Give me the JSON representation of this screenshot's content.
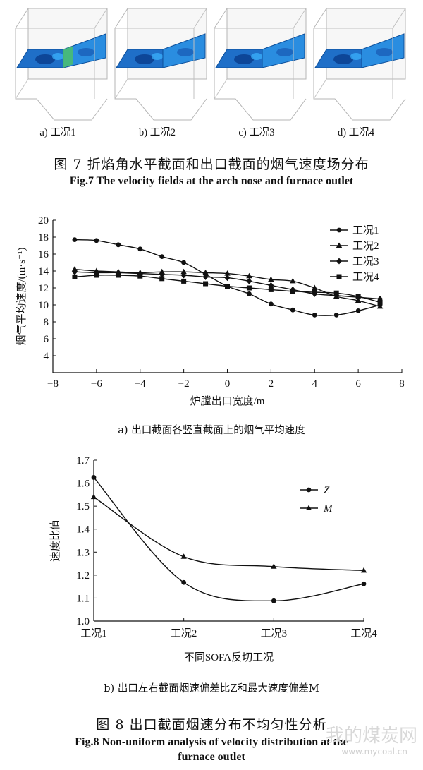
{
  "figure7": {
    "panels": [
      {
        "label": "a) 工况1"
      },
      {
        "label": "b) 工况2"
      },
      {
        "label": "c) 工况3"
      },
      {
        "label": "d) 工况4"
      }
    ],
    "caption_cn": "图 7  折焰角水平截面和出口截面的烟气速度场分布",
    "caption_en": "Fig.7 The velocity fields at the arch nose and furnace outlet"
  },
  "figure8": {
    "caption_cn": "图 8  出口截面烟速分布不均匀性分析",
    "caption_en_line1": "Fig.8 Non-uniform analysis of velocity distribution at the",
    "caption_en_line2": "furnace outlet"
  },
  "chart_data": [
    {
      "type": "line",
      "subtitle": "a) 出口截面各竖直截面上的烟气平均速度",
      "xlabel": "炉膛出口宽度/m",
      "ylabel": "烟气平均速度/(m·s⁻¹)",
      "xlim": [
        -8,
        8
      ],
      "ylim": [
        2,
        20
      ],
      "xticks": [
        -8,
        -6,
        -4,
        -2,
        0,
        2,
        4,
        6,
        8
      ],
      "yticks": [
        4,
        6,
        8,
        10,
        12,
        14,
        16,
        18,
        20
      ],
      "x": [
        -7,
        -6,
        -5,
        -4,
        -3,
        -2,
        -1,
        0,
        1,
        2,
        3,
        4,
        5,
        6,
        7
      ],
      "legend_position": "top-right",
      "series": [
        {
          "name": "工况1",
          "marker": "circle",
          "values": [
            17.7,
            17.6,
            17.1,
            16.6,
            15.7,
            15.0,
            13.6,
            12.2,
            11.3,
            10.1,
            9.4,
            8.8,
            8.8,
            9.3,
            10.0
          ]
        },
        {
          "name": "工况2",
          "marker": "triangle",
          "values": [
            14.2,
            14.0,
            13.9,
            13.8,
            13.9,
            13.9,
            13.8,
            13.7,
            13.4,
            13.0,
            12.8,
            12.0,
            11.0,
            10.5,
            9.8
          ]
        },
        {
          "name": "工况3",
          "marker": "diamond",
          "values": [
            13.9,
            13.8,
            13.8,
            13.7,
            13.6,
            13.5,
            13.3,
            13.2,
            12.8,
            12.3,
            11.8,
            11.3,
            11.1,
            10.9,
            10.7
          ]
        },
        {
          "name": "工况4",
          "marker": "square",
          "values": [
            13.3,
            13.5,
            13.5,
            13.4,
            13.1,
            12.8,
            12.5,
            12.2,
            12.0,
            11.8,
            11.6,
            11.5,
            11.4,
            11.0,
            10.3
          ]
        }
      ]
    },
    {
      "type": "line",
      "subtitle": "b) 出口左右截面烟速偏差比Z和最大速度偏差M",
      "xlabel": "不同SOFA反切工况",
      "ylabel": "速度比值",
      "categories": [
        "工况1",
        "工况2",
        "工况3",
        "工况4"
      ],
      "ylim": [
        1.0,
        1.7
      ],
      "yticks": [
        1.0,
        1.1,
        1.2,
        1.3,
        1.4,
        1.5,
        1.6,
        1.7
      ],
      "legend_position": "top-right",
      "series": [
        {
          "name": "Z",
          "marker": "circle",
          "values": [
            1.625,
            1.168,
            1.088,
            1.162
          ]
        },
        {
          "name": "M",
          "marker": "triangle",
          "values": [
            1.54,
            1.28,
            1.237,
            1.22
          ]
        }
      ]
    }
  ],
  "watermark": {
    "text": "我的煤炭网",
    "url": "www.mycoal.cn"
  }
}
